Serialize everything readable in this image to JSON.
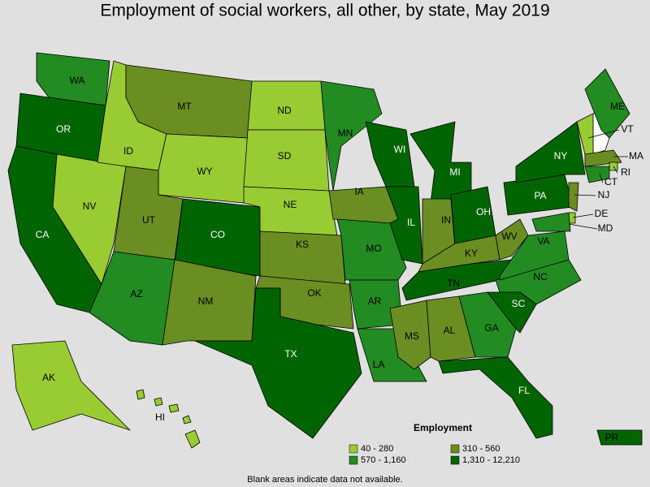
{
  "title": "Employment of social workers, all other, by state, May 2019",
  "legend": {
    "title": "Employment",
    "items": [
      {
        "label": "40 - 280",
        "color": "#99cc33"
      },
      {
        "label": "310 - 560",
        "color": "#6b8e23"
      },
      {
        "label": "570 - 1,160",
        "color": "#228b22"
      },
      {
        "label": "1,310 - 12,210",
        "color": "#006400"
      }
    ]
  },
  "note": "Blank areas indicate data not available.",
  "states": [
    {
      "label": "WA",
      "class": 2
    },
    {
      "label": "OR",
      "class": 3
    },
    {
      "label": "CA",
      "class": 3
    },
    {
      "label": "NV",
      "class": 0
    },
    {
      "label": "ID",
      "class": 0
    },
    {
      "label": "MT",
      "class": 1
    },
    {
      "label": "WY",
      "class": 0
    },
    {
      "label": "UT",
      "class": 1
    },
    {
      "label": "CO",
      "class": 3
    },
    {
      "label": "AZ",
      "class": 2
    },
    {
      "label": "NM",
      "class": 1
    },
    {
      "label": "ND",
      "class": 0
    },
    {
      "label": "SD",
      "class": 0
    },
    {
      "label": "NE",
      "class": 0
    },
    {
      "label": "KS",
      "class": 1
    },
    {
      "label": "OK",
      "class": 1
    },
    {
      "label": "TX",
      "class": 3
    },
    {
      "label": "MN",
      "class": 2
    },
    {
      "label": "IA",
      "class": 1
    },
    {
      "label": "MO",
      "class": 2
    },
    {
      "label": "AR",
      "class": 2
    },
    {
      "label": "LA",
      "class": 2
    },
    {
      "label": "WI",
      "class": 3
    },
    {
      "label": "IL",
      "class": 3
    },
    {
      "label": "MI",
      "class": 3
    },
    {
      "label": "IN",
      "class": 1
    },
    {
      "label": "OH",
      "class": 3
    },
    {
      "label": "KY",
      "class": 1
    },
    {
      "label": "TN",
      "class": 3
    },
    {
      "label": "MS",
      "class": 1
    },
    {
      "label": "AL",
      "class": 1
    },
    {
      "label": "GA",
      "class": 2
    },
    {
      "label": "FL",
      "class": 3
    },
    {
      "label": "SC",
      "class": 3
    },
    {
      "label": "NC",
      "class": 2
    },
    {
      "label": "VA",
      "class": 2
    },
    {
      "label": "WV",
      "class": 1
    },
    {
      "label": "PA",
      "class": 3
    },
    {
      "label": "NY",
      "class": 3
    },
    {
      "label": "ME",
      "class": 2
    },
    {
      "label": "VT",
      "class": 0
    },
    {
      "label": "MA",
      "class": 1
    },
    {
      "label": "RI",
      "class": 0
    },
    {
      "label": "CT",
      "class": 2
    },
    {
      "label": "NJ",
      "class": 1
    },
    {
      "label": "DE",
      "class": 0
    },
    {
      "label": "MD",
      "class": 2
    },
    {
      "label": "AK",
      "class": 0
    },
    {
      "label": "HI",
      "class": 0
    },
    {
      "label": "PR",
      "class": 3
    }
  ]
}
